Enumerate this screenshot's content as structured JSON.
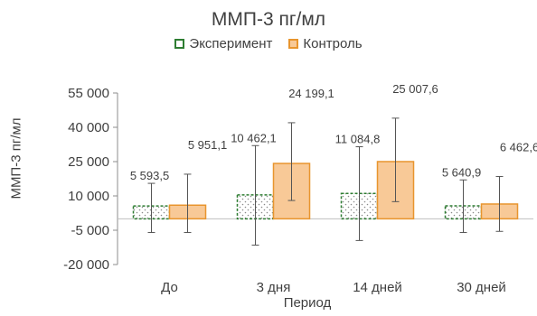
{
  "chart_data": {
    "type": "bar",
    "title": "ММП-3 пг/мл",
    "xlabel": "Период",
    "ylabel": "ММП-3 пг/мл",
    "categories": [
      "До",
      "3 дня",
      "14 дней",
      "30 дней"
    ],
    "ylim": [
      -20000,
      55000
    ],
    "yticks": [
      55000,
      40000,
      25000,
      10000,
      -5000,
      -20000
    ],
    "ytick_labels": [
      "55 000",
      "40 000",
      "25 000",
      "10 000",
      "-5 000",
      "-20 000"
    ],
    "legend_position": "top",
    "grid": false,
    "series": [
      {
        "name": "Эксперимент",
        "color": "#2e7d32",
        "values": [
          5593.5,
          10462.1,
          11084.8,
          5640.9
        ],
        "labels": [
          "5 593,5",
          "10 462,1",
          "11 084,8",
          "5 640,9"
        ],
        "error_low": [
          -6000,
          -11500,
          -9500,
          -6000
        ],
        "error_high": [
          15500,
          32000,
          31500,
          17000
        ]
      },
      {
        "name": "Контроль",
        "color": "#e8952e",
        "values": [
          5951.1,
          24199.1,
          25007.6,
          6462.6
        ],
        "labels": [
          "5 951,1",
          "24 199,1",
          "25 007,6",
          "6 462,6"
        ],
        "error_low": [
          -6000,
          8000,
          7500,
          -5500
        ],
        "error_high": [
          19500,
          42000,
          44000,
          18500
        ]
      }
    ]
  }
}
